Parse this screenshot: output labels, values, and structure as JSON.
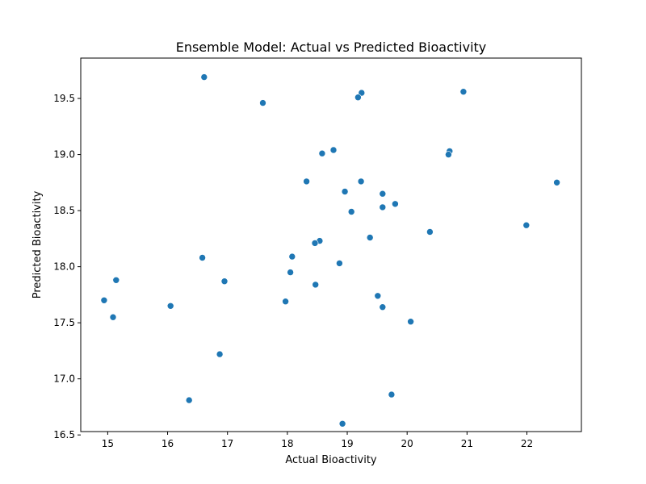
{
  "chart_data": {
    "type": "scatter",
    "title": "Ensemble Model: Actual vs Predicted Bioactivity",
    "xlabel": "Actual Bioactivity",
    "ylabel": "Predicted Bioactivity",
    "xlim": [
      14.55,
      22.91
    ],
    "ylim": [
      16.53,
      19.86
    ],
    "xticks": [
      15,
      16,
      17,
      18,
      19,
      20,
      21,
      22
    ],
    "yticks": [
      16.5,
      17.0,
      17.5,
      18.0,
      18.5,
      19.0,
      19.5
    ],
    "xtick_labels": [
      "15",
      "16",
      "17",
      "18",
      "19",
      "20",
      "21",
      "22"
    ],
    "ytick_labels": [
      "16.5",
      "17.0",
      "17.5",
      "18.0",
      "18.5",
      "19.0",
      "19.5"
    ],
    "grid": false,
    "marker_color": "#1f77b4",
    "points": [
      {
        "x": 16.61,
        "y": 19.69
      },
      {
        "x": 17.59,
        "y": 19.46
      },
      {
        "x": 19.24,
        "y": 19.55
      },
      {
        "x": 19.18,
        "y": 19.51
      },
      {
        "x": 20.94,
        "y": 19.56
      },
      {
        "x": 18.58,
        "y": 19.01
      },
      {
        "x": 18.77,
        "y": 19.04
      },
      {
        "x": 20.71,
        "y": 19.03
      },
      {
        "x": 20.69,
        "y": 19.0
      },
      {
        "x": 18.32,
        "y": 18.76
      },
      {
        "x": 19.23,
        "y": 18.76
      },
      {
        "x": 22.5,
        "y": 18.75
      },
      {
        "x": 18.96,
        "y": 18.67
      },
      {
        "x": 19.59,
        "y": 18.65
      },
      {
        "x": 19.8,
        "y": 18.56
      },
      {
        "x": 19.59,
        "y": 18.53
      },
      {
        "x": 19.07,
        "y": 18.49
      },
      {
        "x": 21.99,
        "y": 18.37
      },
      {
        "x": 20.38,
        "y": 18.31
      },
      {
        "x": 19.38,
        "y": 18.26
      },
      {
        "x": 18.54,
        "y": 18.23
      },
      {
        "x": 18.46,
        "y": 18.21
      },
      {
        "x": 18.08,
        "y": 18.09
      },
      {
        "x": 16.58,
        "y": 18.08
      },
      {
        "x": 18.87,
        "y": 18.03
      },
      {
        "x": 18.05,
        "y": 17.95
      },
      {
        "x": 15.14,
        "y": 17.88
      },
      {
        "x": 16.95,
        "y": 17.87
      },
      {
        "x": 18.47,
        "y": 17.84
      },
      {
        "x": 19.51,
        "y": 17.74
      },
      {
        "x": 14.94,
        "y": 17.7
      },
      {
        "x": 17.97,
        "y": 17.69
      },
      {
        "x": 16.05,
        "y": 17.65
      },
      {
        "x": 19.59,
        "y": 17.64
      },
      {
        "x": 15.09,
        "y": 17.55
      },
      {
        "x": 20.06,
        "y": 17.51
      },
      {
        "x": 16.87,
        "y": 17.22
      },
      {
        "x": 19.74,
        "y": 16.86
      },
      {
        "x": 16.36,
        "y": 16.81
      },
      {
        "x": 18.92,
        "y": 16.6
      }
    ]
  }
}
